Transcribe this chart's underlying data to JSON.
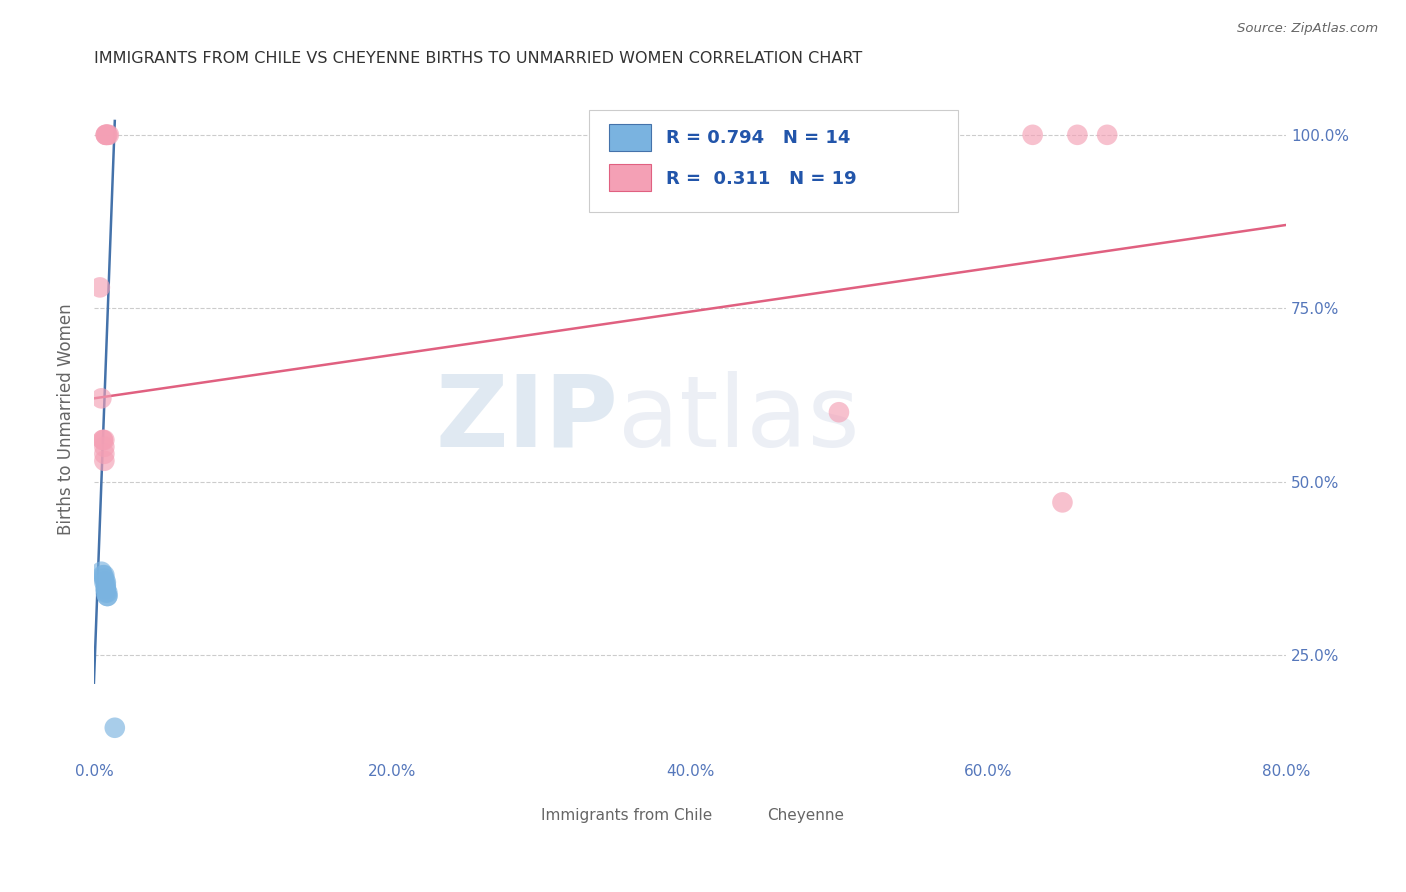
{
  "title": "IMMIGRANTS FROM CHILE VS CHEYENNE BIRTHS TO UNMARRIED WOMEN CORRELATION CHART",
  "source": "Source: ZipAtlas.com",
  "ylabel": "Births to Unmarried Women",
  "watermark_zip": "ZIP",
  "watermark_atlas": "atlas",
  "legend_blue_text": "R = 0.794   N = 14",
  "legend_pink_text": "R =  0.311   N = 19",
  "legend_label_blue": "Immigrants from Chile",
  "legend_label_pink": "Cheyenne",
  "xlim": [
    0.0,
    0.8
  ],
  "ylim": [
    0.1,
    1.08
  ],
  "yticks": [
    0.25,
    0.5,
    0.75,
    1.0
  ],
  "ytick_labels": [
    "25.0%",
    "50.0%",
    "75.0%",
    "100.0%"
  ],
  "xtick_labels": [
    "0.0%",
    "",
    "20.0%",
    "",
    "40.0%",
    "",
    "60.0%",
    "",
    "80.0%"
  ],
  "xticks": [
    0.0,
    0.1,
    0.2,
    0.3,
    0.4,
    0.5,
    0.6,
    0.7,
    0.8
  ],
  "blue_scatter_x": [
    0.005,
    0.006,
    0.007,
    0.007,
    0.007,
    0.008,
    0.008,
    0.008,
    0.008,
    0.008,
    0.009,
    0.009,
    0.009,
    0.014
  ],
  "blue_scatter_y": [
    0.37,
    0.365,
    0.365,
    0.36,
    0.355,
    0.355,
    0.35,
    0.345,
    0.345,
    0.34,
    0.34,
    0.335,
    0.335,
    0.145
  ],
  "pink_scatter_x": [
    0.004,
    0.005,
    0.006,
    0.006,
    0.007,
    0.007,
    0.007,
    0.007,
    0.008,
    0.008,
    0.008,
    0.009,
    0.009,
    0.01,
    0.5,
    0.63,
    0.65,
    0.66,
    0.68
  ],
  "pink_scatter_y": [
    0.78,
    0.62,
    0.56,
    0.56,
    0.56,
    0.55,
    0.54,
    0.53,
    1.0,
    1.0,
    1.0,
    1.0,
    1.0,
    1.0,
    0.6,
    1.0,
    0.47,
    1.0,
    1.0
  ],
  "blue_line_x": [
    0.0,
    0.014
  ],
  "blue_line_y": [
    0.21,
    1.02
  ],
  "pink_line_x": [
    0.0,
    0.8
  ],
  "pink_line_y": [
    0.62,
    0.87
  ],
  "blue_color": "#7ab3e0",
  "pink_color": "#f4a0b5",
  "blue_line_color": "#4472aa",
  "pink_line_color": "#e06080",
  "grid_color": "#cccccc",
  "title_color": "#333333",
  "axis_label_color": "#666666",
  "tick_color": "#5577bb",
  "background_color": "#ffffff"
}
